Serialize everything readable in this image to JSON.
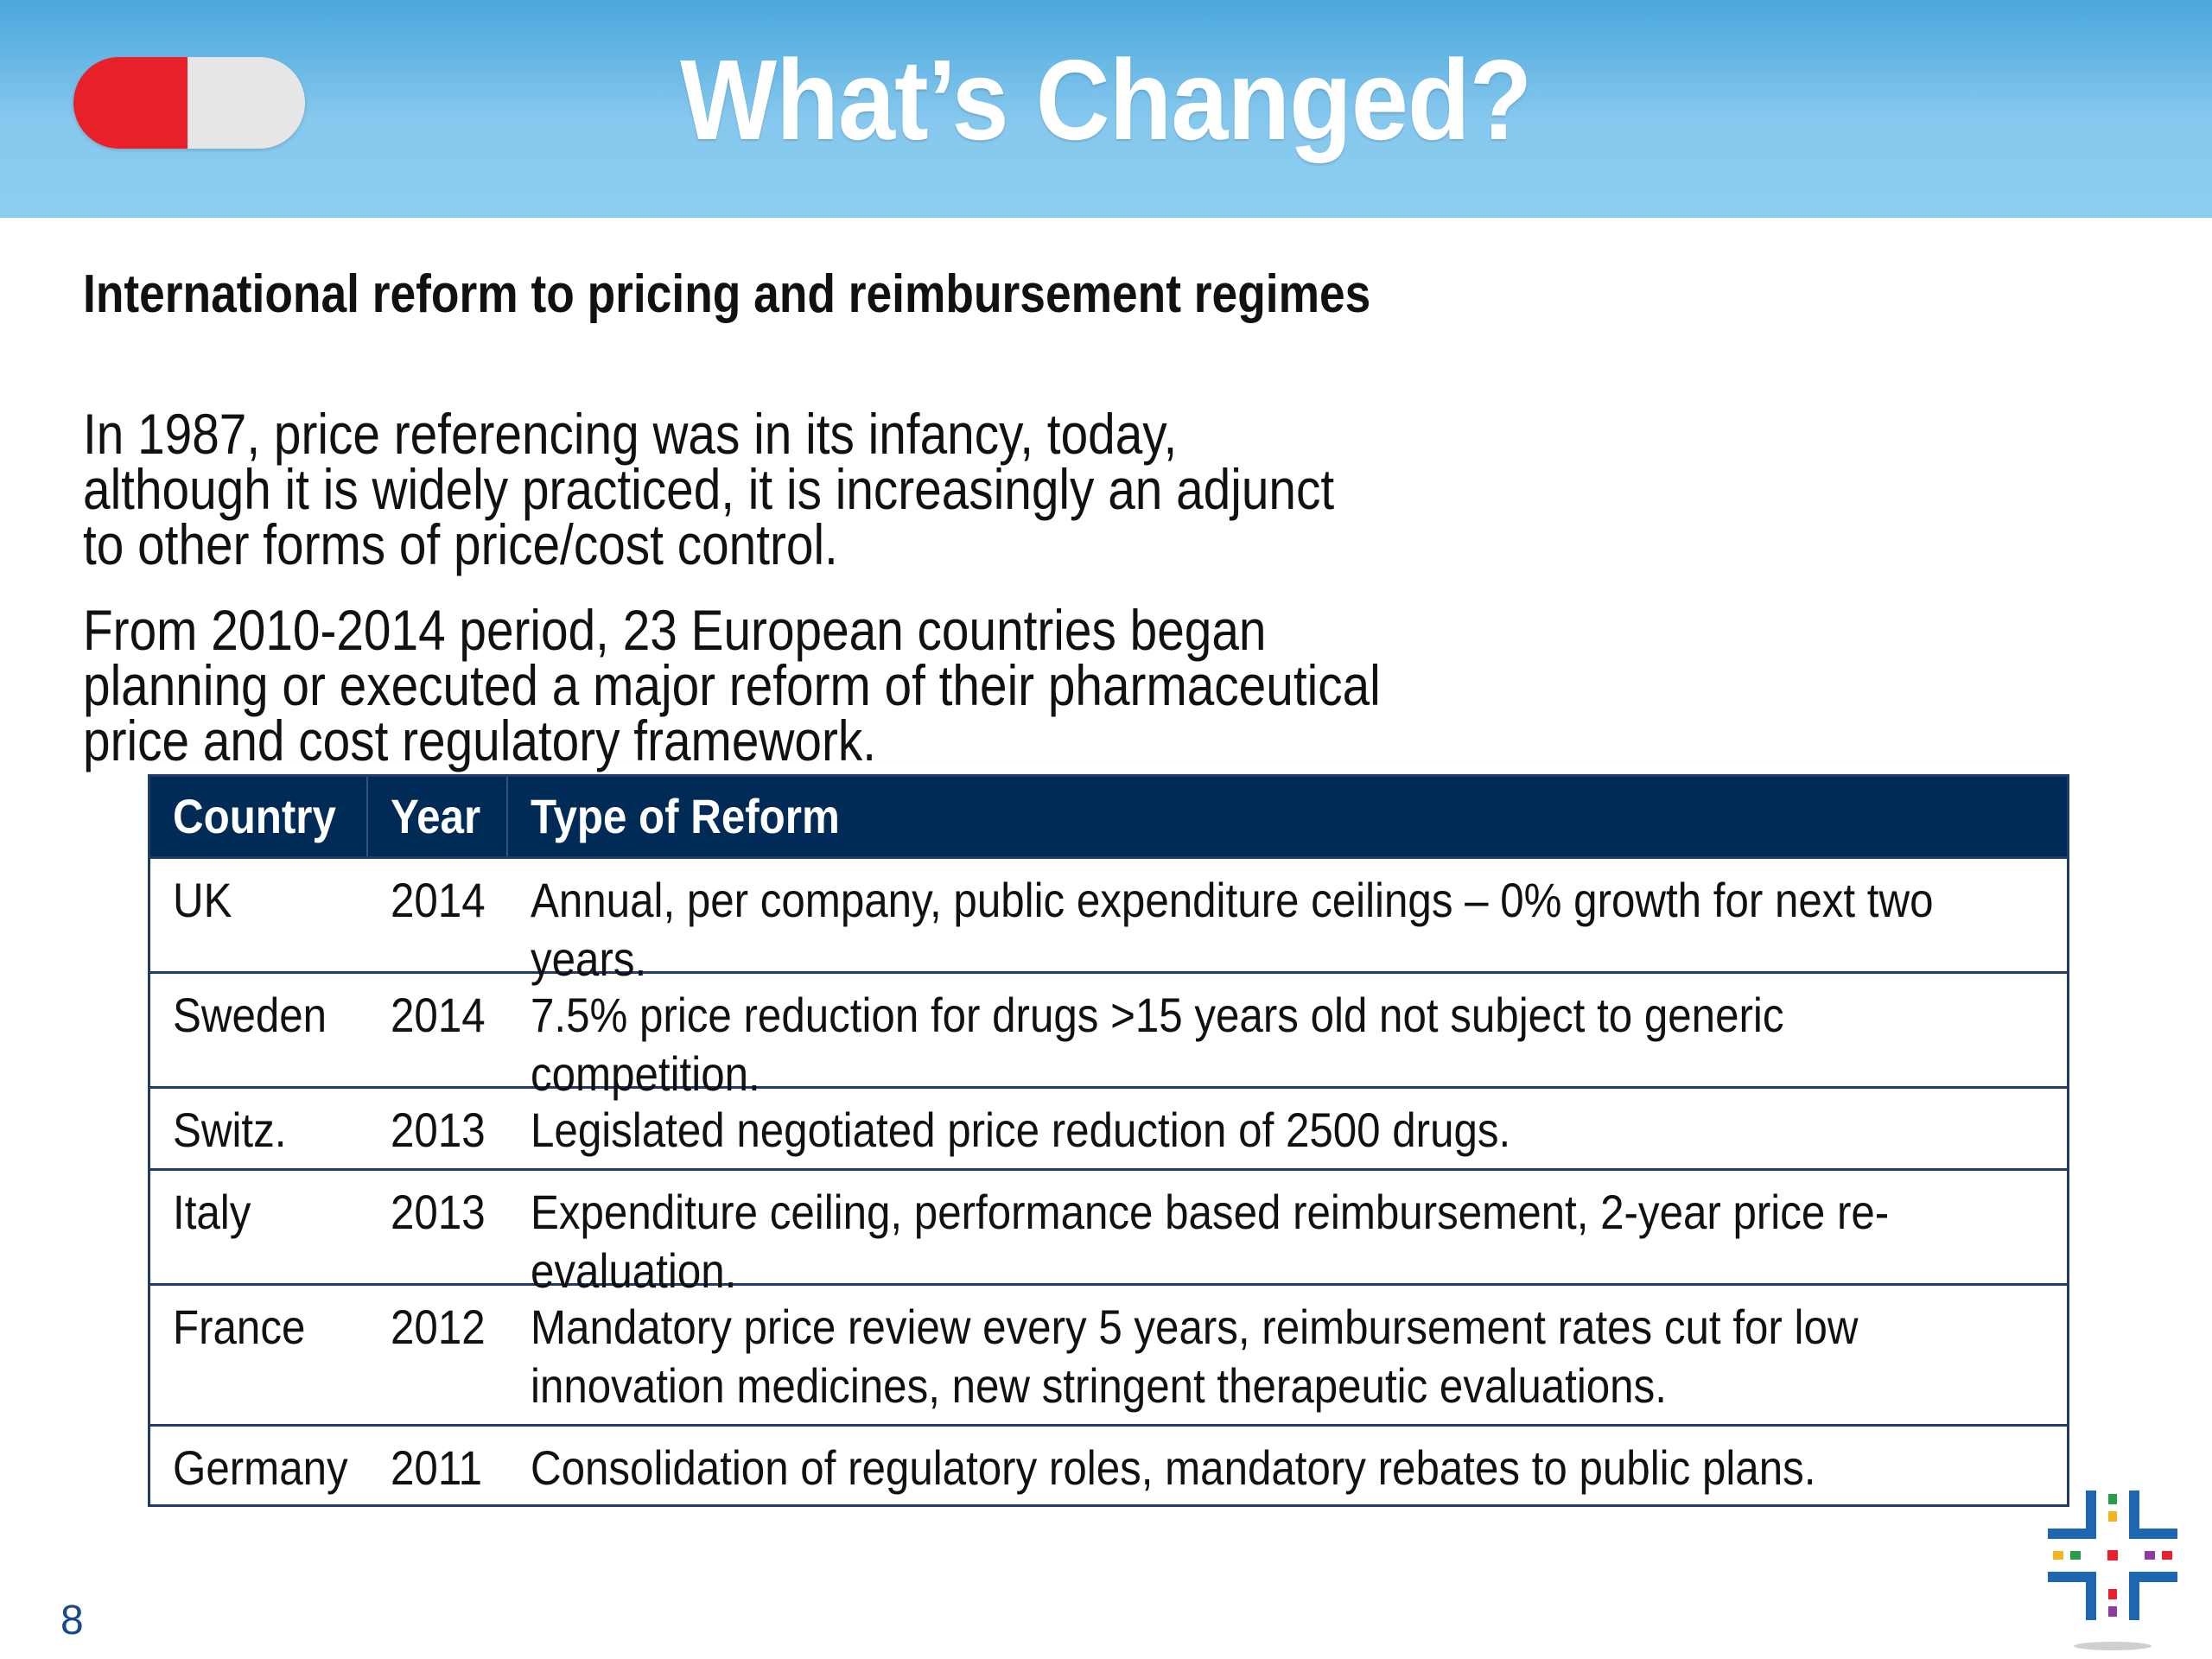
{
  "header": {
    "title": "What’s Changed?"
  },
  "subtitle": "International reform to pricing and reimbursement regimes",
  "paragraphs": [
    "In 1987, price referencing was in its infancy, today, although it is widely practiced, it is increasingly an adjunct to other forms of price/cost control.",
    "From 2010-2014 period, 23 European countries began planning or executed a major reform of their pharmaceutical price and cost regulatory framework."
  ],
  "table": {
    "headers": [
      "Country",
      "Year",
      "Type of Reform"
    ],
    "rows": [
      {
        "country": "UK",
        "year": "2014",
        "reform": "Annual, per company, public expenditure ceilings – 0% growth for next two years."
      },
      {
        "country": "Sweden",
        "year": "2014",
        "reform": "7.5% price reduction for drugs >15 years old not subject to generic competition."
      },
      {
        "country": "Switz.",
        "year": "2013",
        "reform": "Legislated negotiated price reduction of 2500 drugs."
      },
      {
        "country": "Italy",
        "year": "2013",
        "reform": "Expenditure ceiling, performance based reimbursement, 2-year price re-evaluation."
      },
      {
        "country": "France",
        "year": "2012",
        "reform": "Mandatory price review every 5 years, reimbursement rates cut for low innovation medicines, new stringent therapeutic evaluations."
      },
      {
        "country": "Germany",
        "year": "2011",
        "reform": "Consolidation of regulatory roles, mandatory rebates to public plans."
      }
    ]
  },
  "page_number": "8",
  "colors": {
    "header_blue": "#6fbce9",
    "table_header": "#002b57",
    "pill_red": "#e8202a",
    "pill_white": "#e6e6e6"
  },
  "icons": {
    "pill": "pill-icon",
    "logo": "cross-logo-icon"
  }
}
